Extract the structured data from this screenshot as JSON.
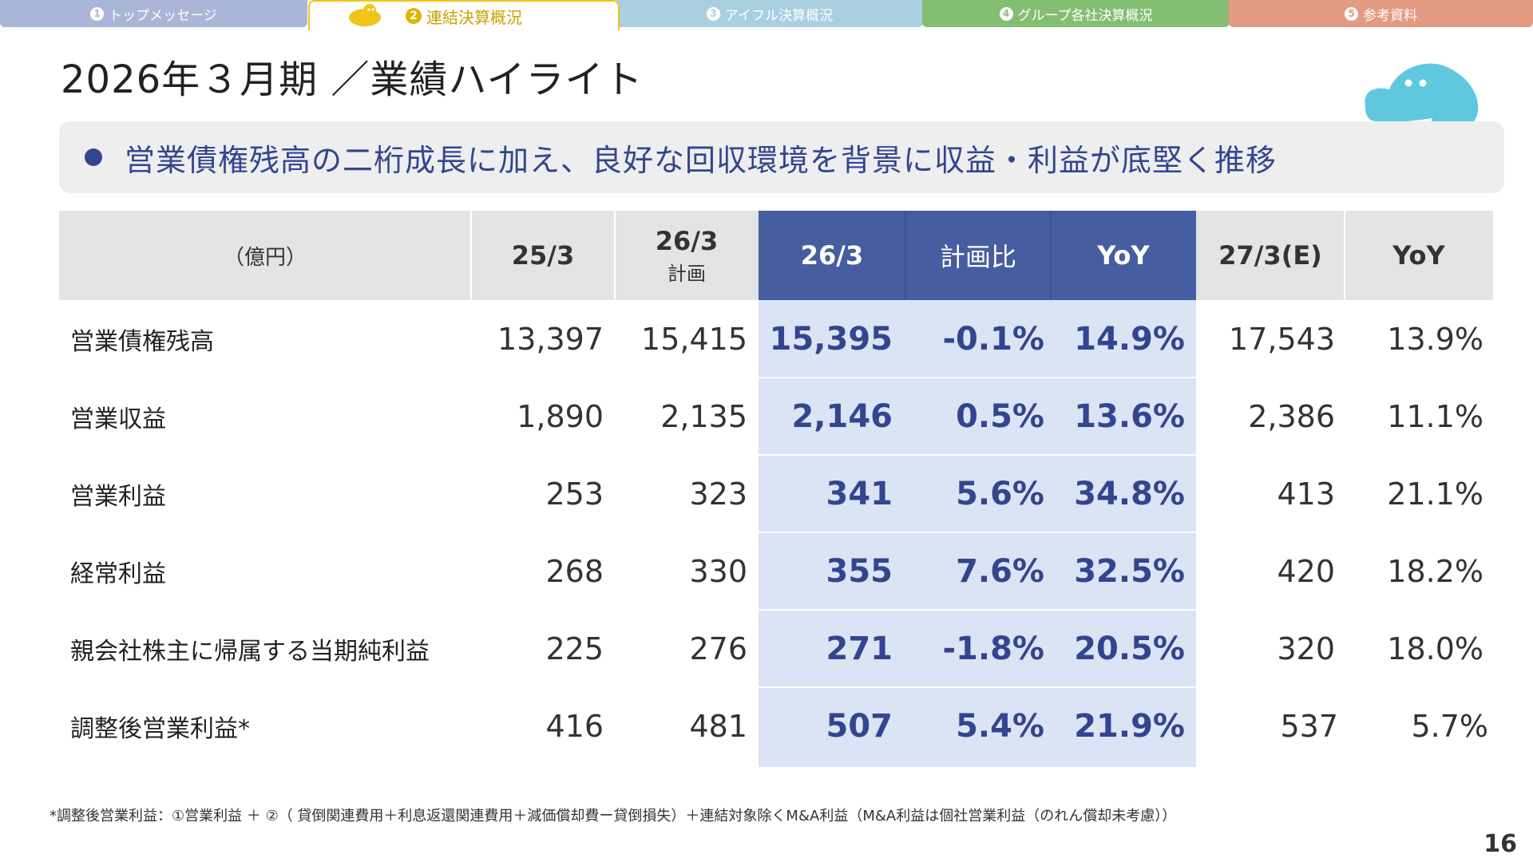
{
  "tabs": [
    {
      "num": "1",
      "label": "トップメッセージ"
    },
    {
      "num": "2",
      "label": "連結決算概況"
    },
    {
      "num": "3",
      "label": "アイフル決算概況"
    },
    {
      "num": "4",
      "label": "グループ各社決算概況"
    },
    {
      "num": "5",
      "label": "参考資料"
    }
  ],
  "active_tab": "連結決算概況",
  "title": "2026年３月期 ／業績ハイライト",
  "highlight": "営業債権残高の二桁成長に加え、良好な回収環境を背景に収益・利益が底堅く推移",
  "table": {
    "unit": "（億円）",
    "headers": [
      {
        "main": "25/3",
        "sub": ""
      },
      {
        "main": "26/3",
        "sub": "計画"
      },
      {
        "main": "26/3",
        "sub": ""
      },
      {
        "main": "計画比",
        "sub": ""
      },
      {
        "main": "YoY",
        "sub": ""
      },
      {
        "main": "27/3(E)",
        "sub": ""
      },
      {
        "main": "YoY",
        "sub": ""
      }
    ],
    "rows": [
      {
        "label": "営業債権残高",
        "values": [
          "13,397",
          "15,415",
          "15,395",
          "-0.1%",
          "14.9%",
          "17,543",
          "13.9%"
        ]
      },
      {
        "label": "営業収益",
        "values": [
          "1,890",
          "2,135",
          "2,146",
          "0.5%",
          "13.6%",
          "2,386",
          "11.1%"
        ]
      },
      {
        "label": "営業利益",
        "values": [
          "253",
          "323",
          "341",
          "5.6%",
          "34.8%",
          "413",
          "21.1%"
        ]
      },
      {
        "label": "経常利益",
        "values": [
          "268",
          "330",
          "355",
          "7.6%",
          "32.5%",
          "420",
          "18.2%"
        ]
      },
      {
        "label": "親会社株主に帰属する当期純利益",
        "values": [
          "225",
          "276",
          "271",
          "-1.8%",
          "20.5%",
          "320",
          "18.0%"
        ]
      },
      {
        "label": "調整後営業利益*",
        "values": [
          "416",
          "481",
          "507",
          "5.4%",
          "21.9%",
          "537",
          "5.7%"
        ]
      }
    ]
  },
  "footnote": "*調整後営業利益：①営業利益 ＋ ②（ 貸倒関連費用＋利息返還関連費用＋減価償却費ー貸倒損失）＋連結対象除くM&A利益（M&A利益は個社営業利益（のれん償却未考慮））",
  "page_number": "16",
  "colors": {
    "navy": "#33458f",
    "header_highlight": "#465da0",
    "highlight_band": "#dbe4f4",
    "header_gray": "#e3e4e6",
    "mascot_blue": "#5fc8df",
    "mascot_yellow": "#f0c419"
  },
  "icons": [
    "mascot-icon",
    "tab-mascot-icon",
    "bullet-icon"
  ]
}
